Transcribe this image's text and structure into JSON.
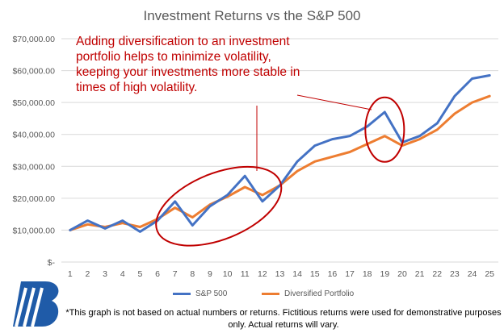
{
  "chart_data": {
    "type": "line",
    "title": "Investment Returns vs the S&P 500",
    "xlabel": "",
    "ylabel": "",
    "categories": [
      "1",
      "2",
      "3",
      "4",
      "5",
      "6",
      "7",
      "8",
      "9",
      "10",
      "11",
      "12",
      "13",
      "14",
      "15",
      "16",
      "17",
      "18",
      "19",
      "20",
      "21",
      "22",
      "23",
      "24",
      "25"
    ],
    "ylim": [
      0,
      70000
    ],
    "yticks": [
      "$-",
      "$10,000.00",
      "$20,000.00",
      "$30,000.00",
      "$40,000.00",
      "$50,000.00",
      "$60,000.00",
      "$70,000.00"
    ],
    "grid": true,
    "legend_position": "bottom",
    "series": [
      {
        "name": "S&P 500",
        "color": "#4472c4",
        "values": [
          10000,
          13000,
          10500,
          13000,
          9500,
          13000,
          19000,
          11500,
          17500,
          21000,
          27000,
          19000,
          24000,
          31500,
          36500,
          38500,
          39500,
          42500,
          47000,
          37500,
          39500,
          43500,
          52000,
          57500,
          58500
        ]
      },
      {
        "name": "Diversified Portfolio",
        "color": "#ed7d31",
        "values": [
          10000,
          11800,
          11000,
          12200,
          11000,
          13500,
          17000,
          14000,
          18000,
          20500,
          23500,
          21000,
          24000,
          28500,
          31500,
          33000,
          34500,
          37000,
          39500,
          36500,
          38500,
          41500,
          46500,
          50000,
          52000
        ]
      }
    ],
    "annotations": [
      {
        "text": "Adding diversification to an investment portfolio helps to minimize volatility, keeping your investments more stable in times of high volatility.",
        "color": "#c00000"
      }
    ]
  },
  "footnote": "*This graph is not based on actual numbers or returns. Fictitious returns were used for demonstrative purposes only. Actual returns will vary.",
  "colors": {
    "annotation": "#c00000",
    "gridline": "#d9d9d9",
    "axis_text": "#595959",
    "logo": "#1f5ba8"
  }
}
